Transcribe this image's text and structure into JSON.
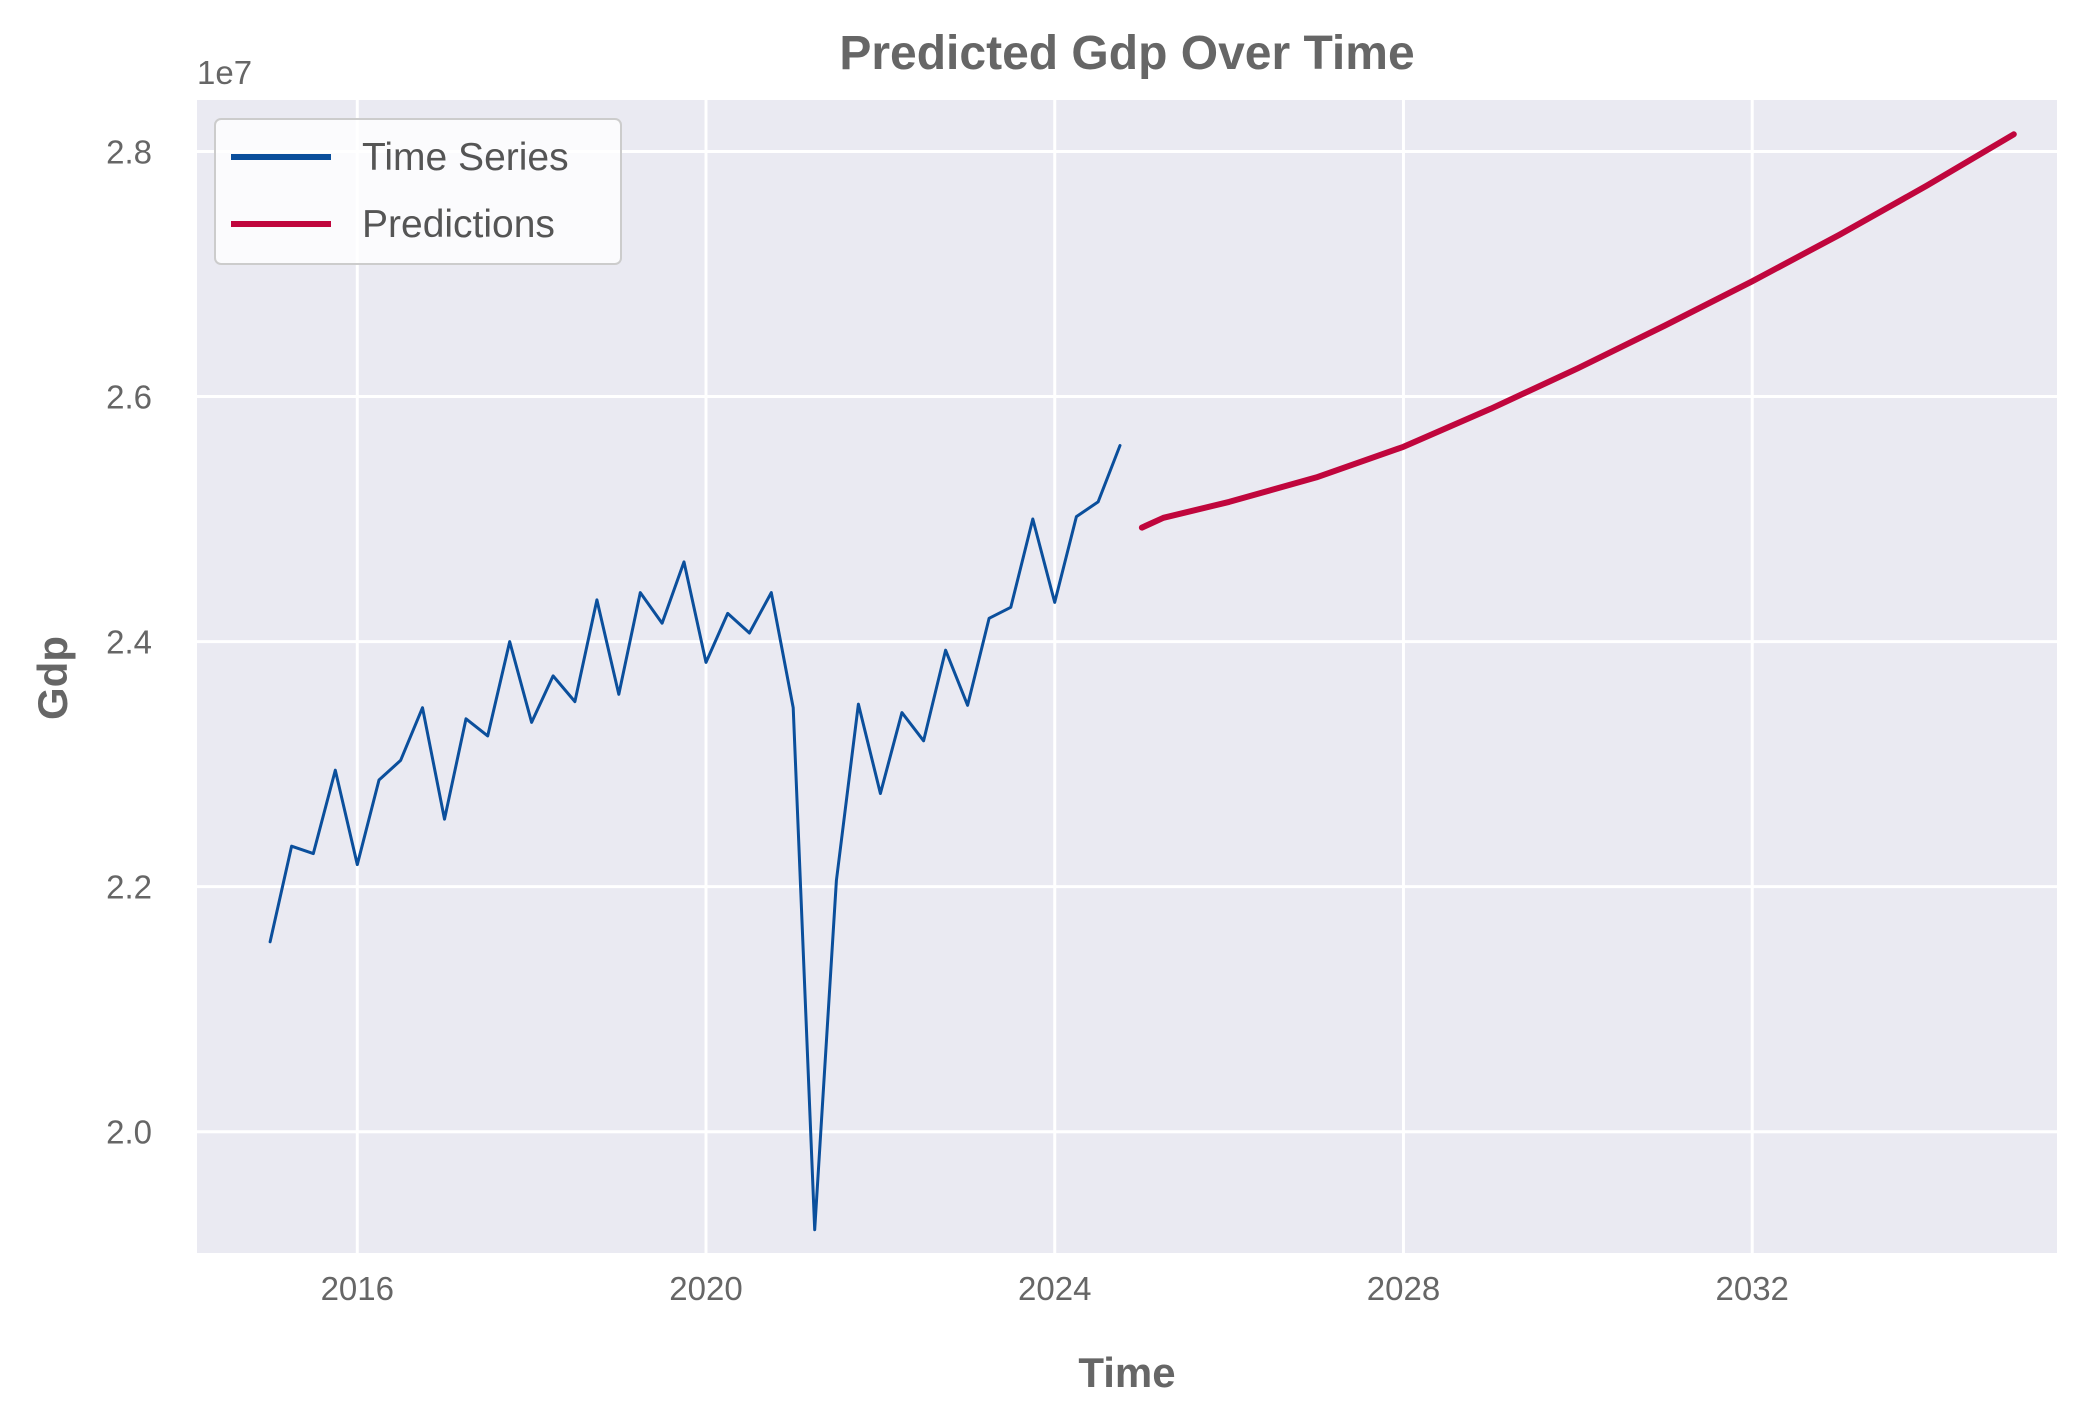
{
  "chart_data": {
    "type": "line",
    "title": "Predicted Gdp Over Time",
    "xlabel": "Time",
    "ylabel": "Gdp",
    "y_exponent_label": "1e7",
    "y_scale": 10000000,
    "x_ticks": [
      "2016",
      "2020",
      "2024",
      "2028",
      "2032"
    ],
    "y_ticks": [
      "2.0",
      "2.2",
      "2.4",
      "2.6",
      "2.8"
    ],
    "xlim": [
      "2014-03-01",
      "2035-07-01"
    ],
    "ylim": [
      19010000,
      28420000
    ],
    "grid": true,
    "legend_position": "upper left",
    "background_color": "#EAEAF2",
    "series": [
      {
        "name": "Time Series",
        "color": "#0B4F9C",
        "x": [
          "2015-01-01",
          "2015-04-01",
          "2015-07-01",
          "2015-10-01",
          "2016-01-01",
          "2016-04-01",
          "2016-07-01",
          "2016-10-01",
          "2017-01-01",
          "2017-04-01",
          "2017-07-01",
          "2017-10-01",
          "2018-01-01",
          "2018-04-01",
          "2018-07-01",
          "2018-10-01",
          "2019-01-01",
          "2019-04-01",
          "2019-07-01",
          "2019-10-01",
          "2020-01-01",
          "2020-04-01",
          "2020-07-01",
          "2020-10-01",
          "2021-01-01",
          "2021-04-01",
          "2021-07-01",
          "2021-10-01",
          "2022-01-01",
          "2022-04-01",
          "2022-07-01",
          "2022-10-01",
          "2023-01-01",
          "2023-04-01",
          "2023-07-01",
          "2023-10-01",
          "2024-01-01",
          "2024-04-01",
          "2024-07-01",
          "2024-10-01"
        ],
        "values": [
          21550000,
          22330000,
          22270000,
          22950000,
          22180000,
          22870000,
          23030000,
          23460000,
          22550000,
          23370000,
          23230000,
          24000000,
          23340000,
          23720000,
          23510000,
          24340000,
          23570000,
          24400000,
          24150000,
          24650000,
          23830000,
          24230000,
          24070000,
          24400000,
          23460000,
          19200000,
          22050000,
          23490000,
          22760000,
          23420000,
          23190000,
          23930000,
          23480000,
          24190000,
          24280000,
          25000000,
          24320000,
          25020000,
          25140000,
          25600000
        ]
      },
      {
        "name": "Predictions",
        "color": "#C0063D",
        "x": [
          "2025-01-01",
          "2025-04-01",
          "2026-01-01",
          "2027-01-01",
          "2028-01-01",
          "2029-01-01",
          "2030-01-01",
          "2031-01-01",
          "2032-01-01",
          "2033-01-01",
          "2034-01-01",
          "2035-01-01"
        ],
        "values": [
          24930000,
          25010000,
          25140000,
          25340000,
          25590000,
          25900000,
          26230000,
          26580000,
          26940000,
          27320000,
          27720000,
          28140000
        ]
      }
    ]
  }
}
